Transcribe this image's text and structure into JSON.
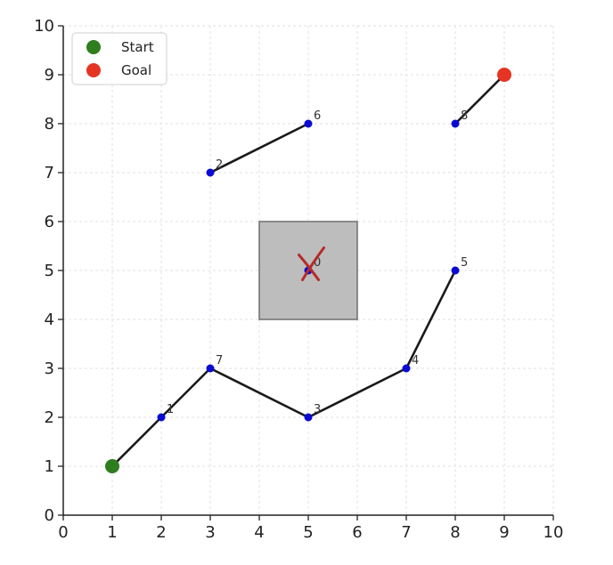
{
  "chart_data": {
    "type": "scatter",
    "xlim": [
      0,
      10
    ],
    "ylim": [
      0,
      10
    ],
    "xticks": [
      "0",
      "1",
      "2",
      "3",
      "4",
      "5",
      "6",
      "7",
      "8",
      "9",
      "10"
    ],
    "yticks": [
      "0",
      "1",
      "2",
      "3",
      "4",
      "5",
      "6",
      "7",
      "8",
      "9",
      "10"
    ],
    "grid": true,
    "legend": {
      "placement": "top-left",
      "entries": [
        {
          "label": "Start",
          "color": "#2e7d1e"
        },
        {
          "label": "Goal",
          "color": "#e53424"
        }
      ]
    },
    "start": {
      "x": 1,
      "y": 1
    },
    "goal": {
      "x": 9,
      "y": 9
    },
    "obstacle": {
      "x0": 4,
      "y0": 4,
      "x1": 6,
      "y1": 6,
      "color": "#bdbdbd"
    },
    "obstacle_mark": {
      "x": 5.1,
      "y": 5.1,
      "color": "#b52a2a"
    },
    "nodes": [
      {
        "label": "1",
        "x": 2,
        "y": 2
      },
      {
        "label": "7",
        "x": 3,
        "y": 3
      },
      {
        "label": "2",
        "x": 3,
        "y": 7
      },
      {
        "label": "3",
        "x": 5,
        "y": 2
      },
      {
        "label": "4",
        "x": 7,
        "y": 3
      },
      {
        "label": "5",
        "x": 8,
        "y": 5
      },
      {
        "label": "6",
        "x": 5,
        "y": 8
      },
      {
        "label": "8",
        "x": 8,
        "y": 8
      },
      {
        "label": "0",
        "x": 5,
        "y": 5
      }
    ],
    "edges": [
      [
        [
          1,
          1
        ],
        [
          2,
          2
        ],
        [
          3,
          3
        ],
        [
          5,
          2
        ],
        [
          7,
          3
        ],
        [
          8,
          5
        ]
      ],
      [
        [
          3,
          7
        ],
        [
          5,
          8
        ]
      ],
      [
        [
          8,
          8
        ],
        [
          9,
          9
        ]
      ]
    ],
    "colors": {
      "node": "#0a0ad2",
      "edge": "#1a1a1a",
      "grid": "#e2e2e2"
    }
  }
}
